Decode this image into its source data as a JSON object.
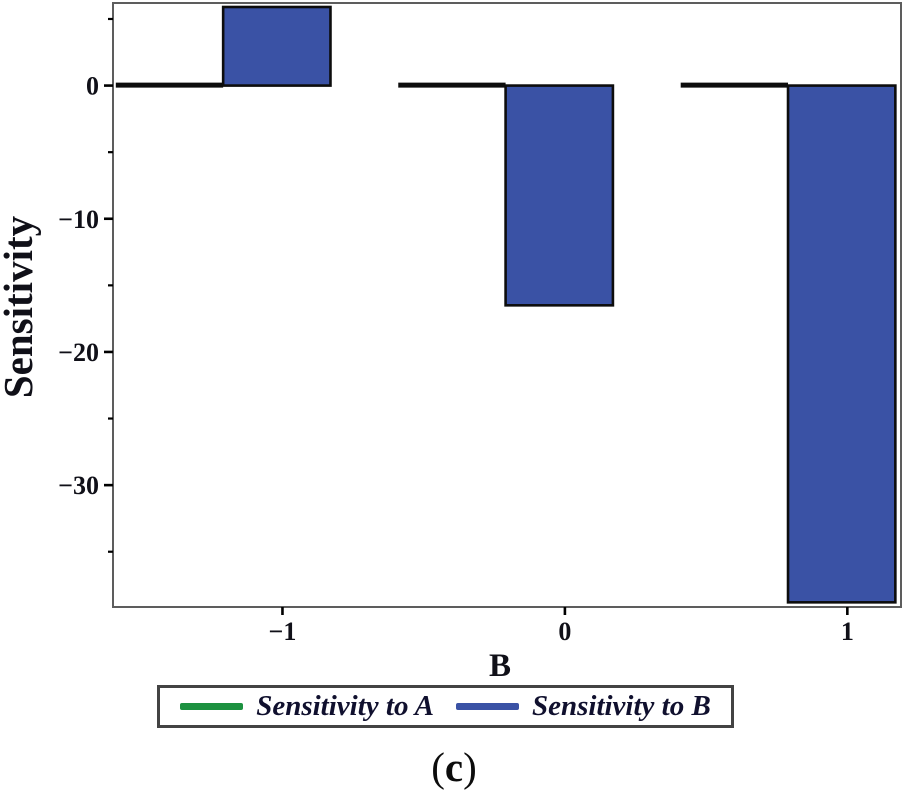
{
  "caption": {
    "open": "(",
    "letter": "c",
    "close": ")"
  },
  "chart_data": {
    "type": "bar",
    "title": "",
    "xlabel": "B",
    "ylabel": "Sensitivity",
    "categories": [
      -1,
      0,
      1
    ],
    "series": [
      {
        "name": "Sensitivity to A",
        "values": [
          0,
          0,
          0
        ],
        "color": "#1c9140"
      },
      {
        "name": "Sensitivity to B",
        "values": [
          5.9,
          -16.5,
          -38.8
        ],
        "color": "#3a52a5"
      }
    ],
    "xlim": [
      -1.6,
      1.19
    ],
    "ylim": [
      -39.15,
      6.2
    ],
    "x_ticks": [
      -1,
      0,
      1
    ],
    "y_major_ticks": [
      0,
      -10,
      -20,
      -30
    ],
    "y_minor_ticks": [
      5,
      -5,
      -15,
      -25,
      -35
    ],
    "grid": false,
    "legend_position": "bottom",
    "bar_outline_color": "#0d0d0d",
    "frame_color": "#5d5d5d",
    "tick_color": "#000000"
  }
}
